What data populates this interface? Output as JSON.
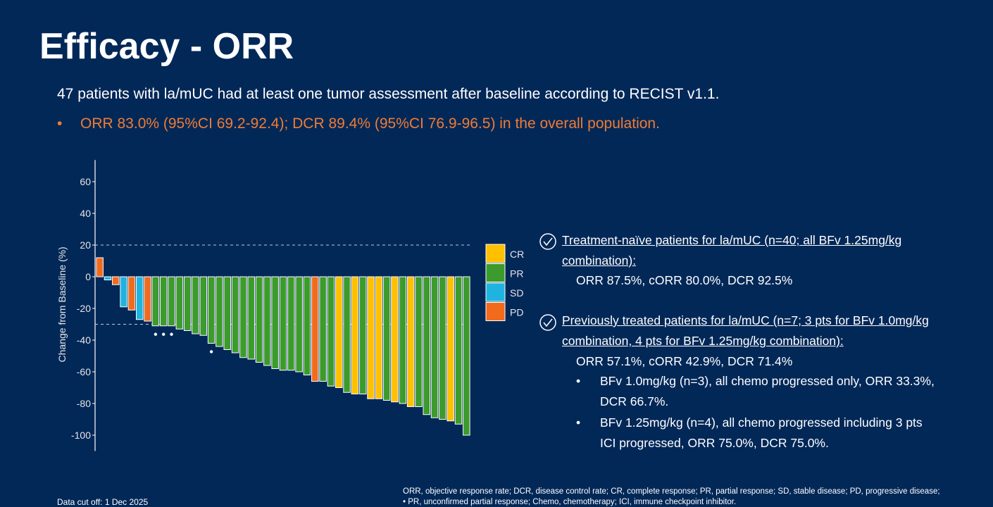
{
  "title": "Efficacy - ORR",
  "subtitle": "47 patients with la/mUC had at least one tumor assessment after baseline according to RECIST v1.1.",
  "highlight": "ORR 83.0% (95%CI 69.2-92.4); DCR 89.4% (95%CI 76.9-96.5)  in the overall population.",
  "chart_data": {
    "type": "waterfall",
    "y_label": "Change from Baseline (%)",
    "values": [
      12,
      -2,
      -5,
      -19,
      -21,
      -27,
      -28,
      -31,
      -31,
      -31,
      -33,
      -34,
      -36,
      -37,
      -42,
      -44,
      -46,
      -48,
      -51,
      -52,
      -54,
      -56,
      -58,
      -59,
      -59,
      -60,
      -62,
      -66,
      -66,
      -69,
      -70,
      -73,
      -74,
      -74,
      -77,
      -77,
      -78,
      -79,
      -80,
      -82,
      -82,
      -87,
      -89,
      -90,
      -91,
      -93,
      -100
    ],
    "response": [
      "PD",
      "SD",
      "PD",
      "SD",
      "PD",
      "SD",
      "PD",
      "PR",
      "PR",
      "PR",
      "PR",
      "PR",
      "PR",
      "PR",
      "PR",
      "PR",
      "PR",
      "PR",
      "PR",
      "PR",
      "PR",
      "PR",
      "PR",
      "PR",
      "PR",
      "PR",
      "PR",
      "PD",
      "PR",
      "PR",
      "CR",
      "PR",
      "CR",
      "PR",
      "CR",
      "CR",
      "PR",
      "CR",
      "PR",
      "CR",
      "PR",
      "PR",
      "PR",
      "PR",
      "CR",
      "PR",
      "PR"
    ],
    "unconfirmed": [
      7,
      8,
      9,
      14
    ],
    "legend": [
      {
        "name": "CR",
        "color": "#ffc000"
      },
      {
        "name": "PR",
        "color": "#3c9b2c"
      },
      {
        "name": "SD",
        "color": "#1fb4e0"
      },
      {
        "name": "PD",
        "color": "#f26b1d"
      }
    ],
    "reference_lines": [
      20,
      -30
    ],
    "ylim": [
      -110,
      75
    ],
    "yticks": [
      -100,
      -80,
      -60,
      -40,
      -20,
      0,
      20,
      40,
      60
    ]
  },
  "notes": [
    {
      "heading": "Treatment-naïve patients for la/mUC (n=40; all BFv 1.25mg/kg combination):",
      "result": "ORR 87.5%, cORR 80.0%, DCR 92.5%"
    },
    {
      "heading": "Previously treated patients for la/mUC (n=7; 3 pts for BFv 1.0mg/kg combination, 4 pts for BFv 1.25mg/kg combination):",
      "result": "ORR 57.1%, cORR 42.9%, DCR 71.4%",
      "bullets": [
        "BFv 1.0mg/kg (n=3), all chemo progressed only, ORR 33.3%, DCR 66.7%.",
        "BFv 1.25mg/kg (n=4), all chemo progressed including 3 pts ICI progressed, ORR 75.0%, DCR 75.0%."
      ]
    }
  ],
  "footer": {
    "cutoff": "Data cut off: 1 Dec 2025",
    "abbreviations": [
      "ORR, objective response rate; DCR, disease control rate; CR, complete response; PR, partial response; SD, stable disease; PD, progressive disease;",
      "• PR, unconfirmed partial response; Chemo, chemotherapy; ICI, immune checkpoint inhibitor."
    ]
  }
}
